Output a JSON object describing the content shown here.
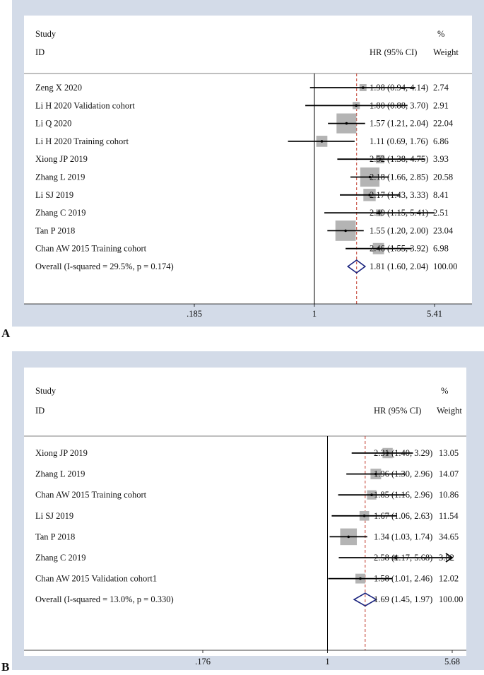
{
  "chart_data": [
    {
      "type": "forest",
      "panel_label": "A",
      "headers": {
        "study_line1": "Study",
        "study_line2": "ID",
        "effect": "HR (95% CI)",
        "weight_line1": "%",
        "weight_line2": "Weight"
      },
      "axis": {
        "log_scale": true,
        "min": 0.185,
        "max": 5.41,
        "ticks": [
          {
            "value": 0.185,
            "label": ".185"
          },
          {
            "value": 1,
            "label": "1"
          },
          {
            "value": 5.41,
            "label": "5.41"
          }
        ]
      },
      "null_line": 1,
      "overall_line": 1.81,
      "studies": [
        {
          "name": "Zeng X 2020",
          "hr": 1.98,
          "lower": 0.94,
          "upper": 4.14,
          "ci_text": "1.98 (0.94, 4.14)",
          "weight": 2.74,
          "weight_text": "2.74"
        },
        {
          "name": "Li H 2020 Validation cohort",
          "hr": 1.8,
          "lower": 0.88,
          "upper": 3.7,
          "ci_text": "1.80 (0.88, 3.70)",
          "weight": 2.91,
          "weight_text": "2.91"
        },
        {
          "name": "Li Q 2020",
          "hr": 1.57,
          "lower": 1.21,
          "upper": 2.04,
          "ci_text": "1.57 (1.21, 2.04)",
          "weight": 22.04,
          "weight_text": "22.04"
        },
        {
          "name": "Li H 2020 Training cohort",
          "hr": 1.11,
          "lower": 0.69,
          "upper": 1.76,
          "ci_text": "1.11 (0.69, 1.76)",
          "weight": 6.86,
          "weight_text": "6.86"
        },
        {
          "name": "Xiong JP 2019",
          "hr": 2.52,
          "lower": 1.38,
          "upper": 4.75,
          "ci_text": "2.52 (1.38, 4.75)",
          "weight": 3.93,
          "weight_text": "3.93"
        },
        {
          "name": "Zhang L 2019",
          "hr": 2.18,
          "lower": 1.66,
          "upper": 2.85,
          "ci_text": "2.18 (1.66, 2.85)",
          "weight": 20.58,
          "weight_text": "20.58"
        },
        {
          "name": "Li SJ 2019",
          "hr": 2.17,
          "lower": 1.43,
          "upper": 3.33,
          "ci_text": "2.17 (1.43, 3.33)",
          "weight": 8.41,
          "weight_text": "8.41"
        },
        {
          "name": "Zhang C 2019",
          "hr": 2.49,
          "lower": 1.15,
          "upper": 5.41,
          "ci_text": "2.49 (1.15, 5.41)",
          "weight": 2.51,
          "weight_text": "2.51"
        },
        {
          "name": "Tan P 2018",
          "hr": 1.55,
          "lower": 1.2,
          "upper": 2.0,
          "ci_text": "1.55 (1.20, 2.00)",
          "weight": 23.04,
          "weight_text": "23.04"
        },
        {
          "name": "Chan AW 2015 Training cohort",
          "hr": 2.46,
          "lower": 1.55,
          "upper": 3.92,
          "ci_text": "2.46 (1.55, 3.92)",
          "weight": 6.98,
          "weight_text": "6.98"
        }
      ],
      "overall": {
        "name": "Overall  (I-squared = 29.5%, p = 0.174)",
        "hr": 1.81,
        "lower": 1.6,
        "upper": 2.04,
        "ci_text": "1.81 (1.60, 2.04)",
        "weight_text": "100.00"
      },
      "colors": {
        "box": "#b4b4b4",
        "line": "#000000",
        "overall_line": "#c0392b",
        "diamond": "#1a237e",
        "frame": "#d3dbe8"
      }
    },
    {
      "type": "forest",
      "panel_label": "B",
      "headers": {
        "study_line1": "Study",
        "study_line2": "ID",
        "effect": "HR (95% CI)",
        "weight_line1": "%",
        "weight_line2": "Weight"
      },
      "axis": {
        "log_scale": true,
        "min": 0.176,
        "max": 5.68,
        "ticks": [
          {
            "value": 0.176,
            "label": ".176"
          },
          {
            "value": 1,
            "label": "1"
          },
          {
            "value": 5.68,
            "label": "5.68"
          }
        ]
      },
      "null_line": 1,
      "overall_line": 1.69,
      "studies": [
        {
          "name": "Xiong JP 2019",
          "hr": 2.31,
          "lower": 1.4,
          "upper": 3.29,
          "ci_text": "2.31 (1.40, 3.29)",
          "weight": 13.05,
          "weight_text": "13.05"
        },
        {
          "name": "Zhang L 2019",
          "hr": 1.96,
          "lower": 1.3,
          "upper": 2.96,
          "ci_text": "1.96 (1.30, 2.96)",
          "weight": 14.07,
          "weight_text": "14.07"
        },
        {
          "name": "Chan AW 2015 Training cohort",
          "hr": 1.85,
          "lower": 1.16,
          "upper": 2.96,
          "ci_text": "1.85 (1.16, 2.96)",
          "weight": 10.86,
          "weight_text": "10.86"
        },
        {
          "name": "Li SJ 2019",
          "hr": 1.67,
          "lower": 1.06,
          "upper": 2.63,
          "ci_text": "1.67 (1.06, 2.63)",
          "weight": 11.54,
          "weight_text": "11.54"
        },
        {
          "name": "Tan P 2018",
          "hr": 1.34,
          "lower": 1.03,
          "upper": 1.74,
          "ci_text": "1.34 (1.03, 1.74)",
          "weight": 34.65,
          "weight_text": "34.65"
        },
        {
          "name": "Zhang C 2019",
          "hr": 2.58,
          "lower": 1.17,
          "upper": 5.68,
          "ci_text": "2.58 (1.17, 5.68)",
          "weight": 3.82,
          "weight_text": "3.82",
          "arrow_right": true
        },
        {
          "name": "Chan AW 2015 Validation cohort1",
          "hr": 1.58,
          "lower": 1.01,
          "upper": 2.46,
          "ci_text": "1.58 (1.01, 2.46)",
          "weight": 12.02,
          "weight_text": "12.02"
        }
      ],
      "overall": {
        "name": "Overall  (I-squared = 13.0%, p = 0.330)",
        "hr": 1.69,
        "lower": 1.45,
        "upper": 1.97,
        "ci_text": "1.69 (1.45, 1.97)",
        "weight_text": "100.00"
      },
      "colors": {
        "box": "#b4b4b4",
        "line": "#000000",
        "overall_line": "#c0392b",
        "diamond": "#1a237e",
        "frame": "#d3dbe8"
      }
    }
  ]
}
